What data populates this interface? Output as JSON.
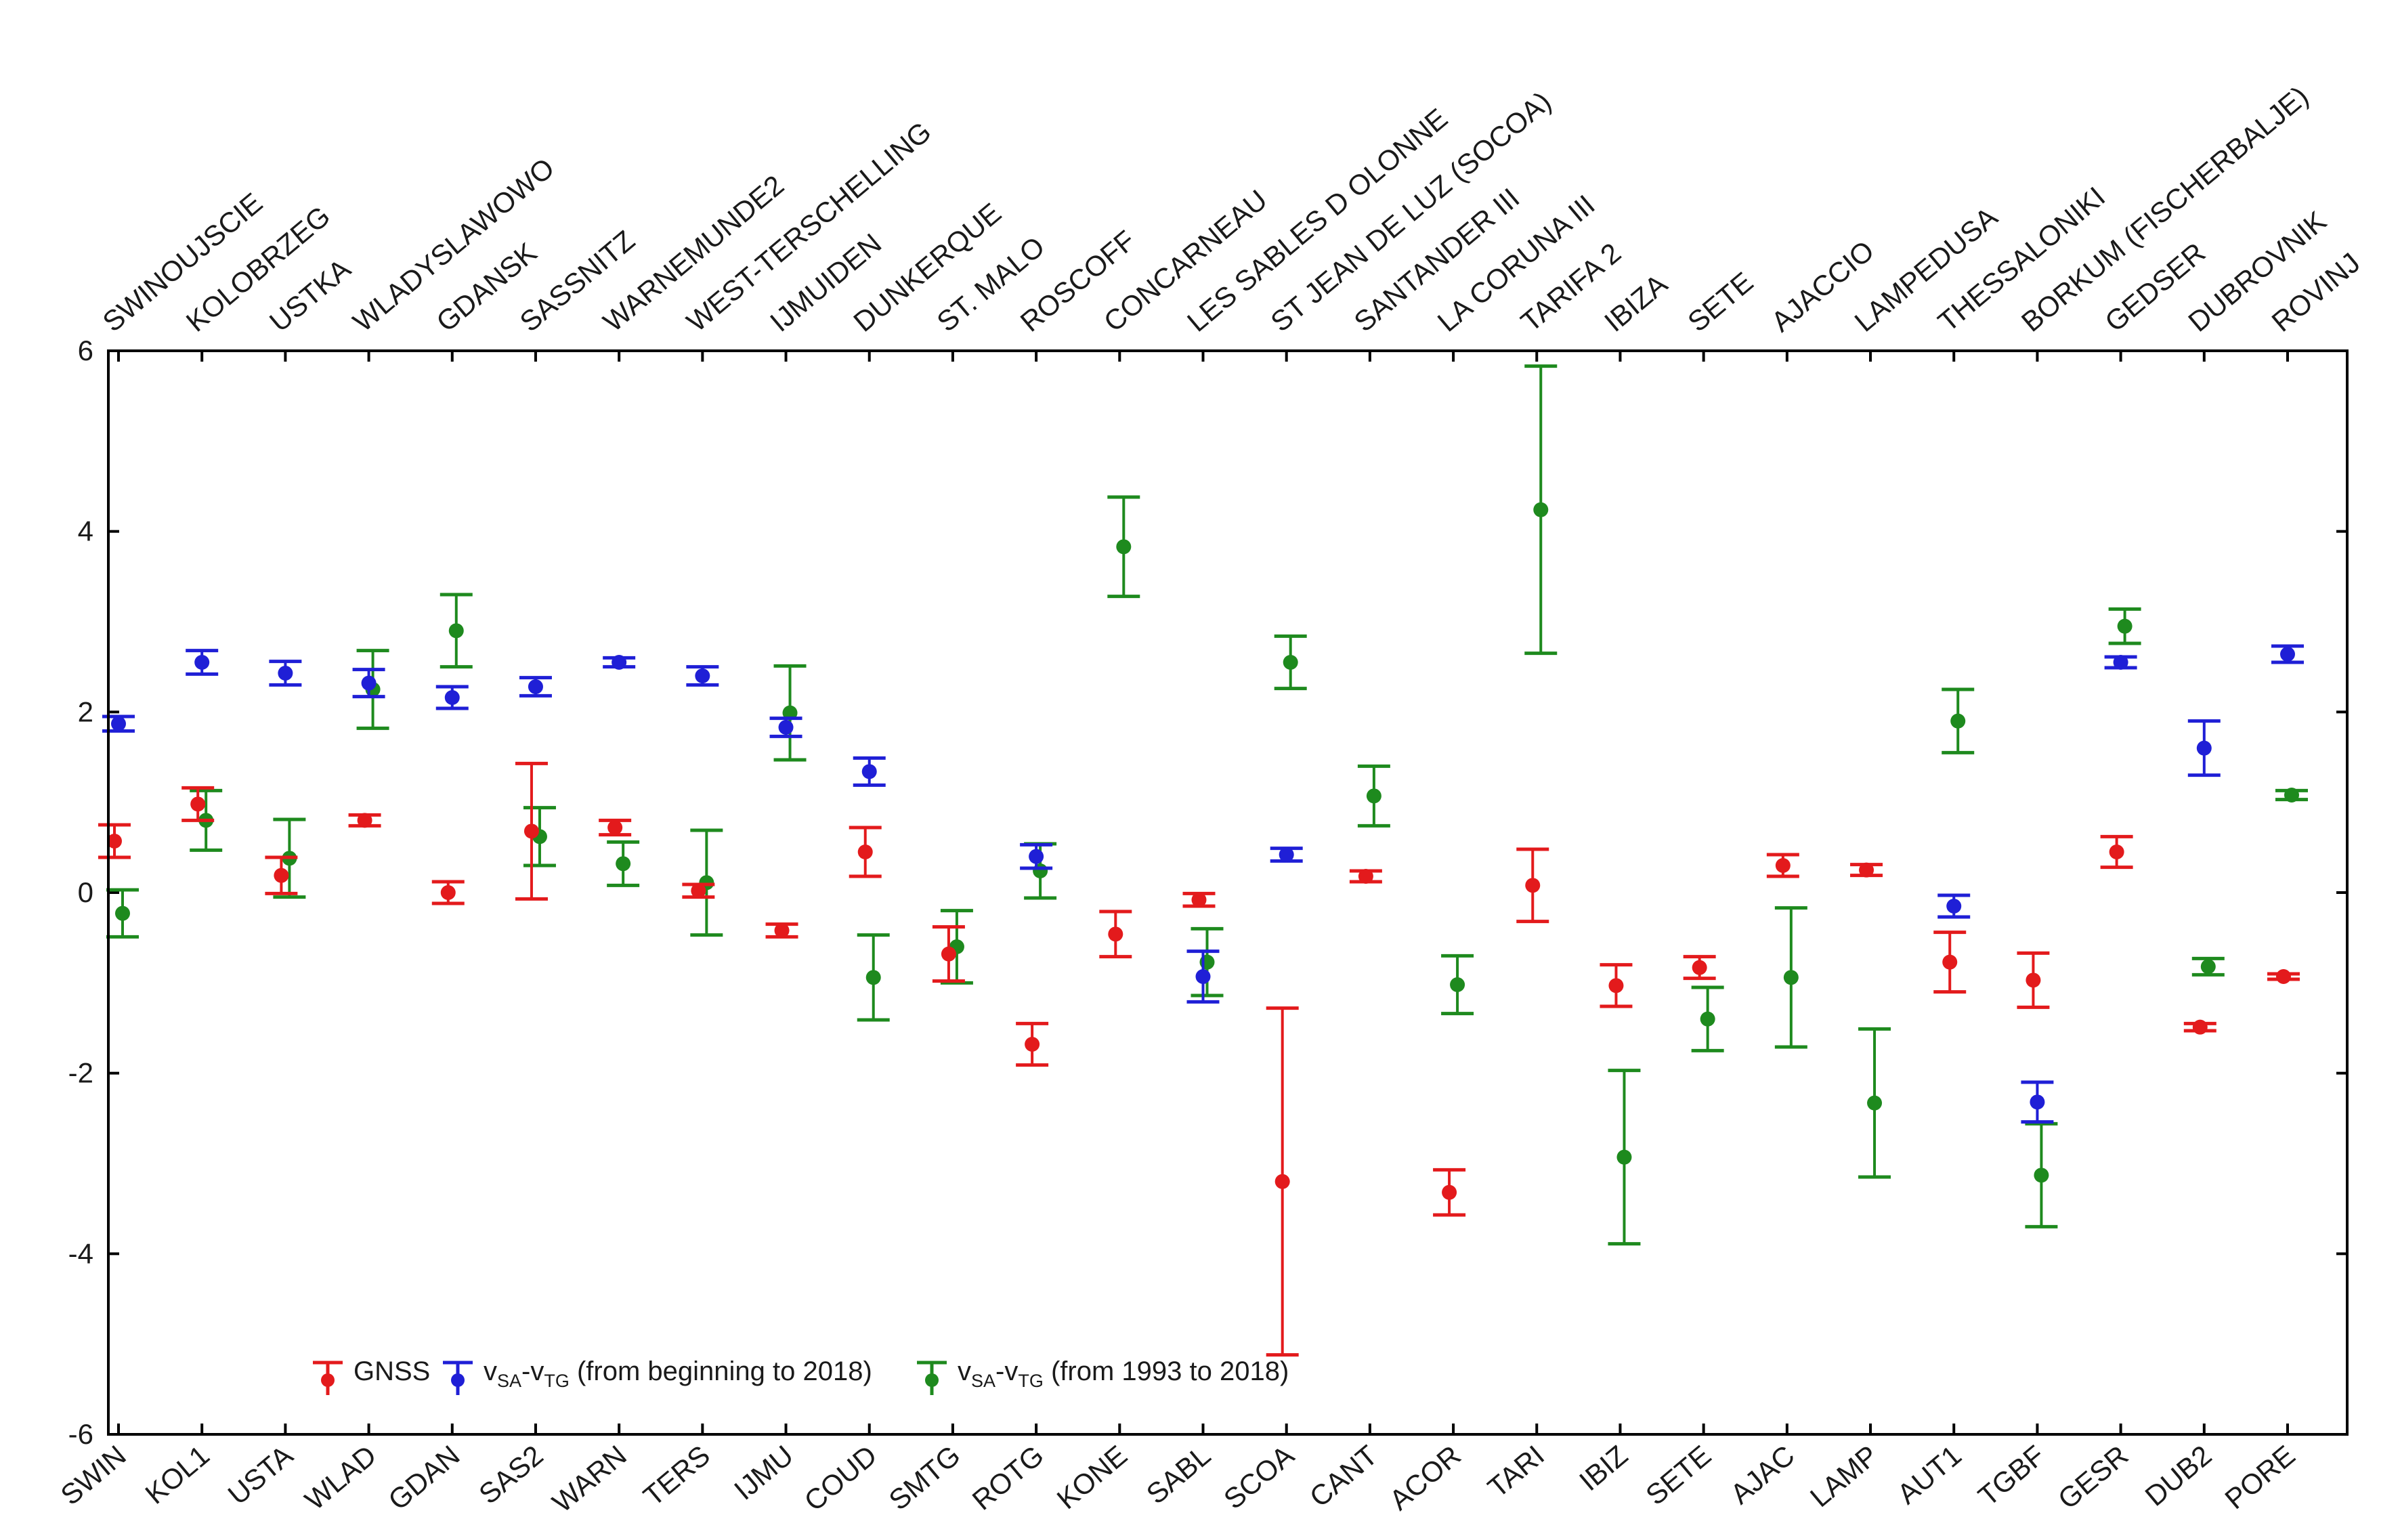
{
  "chart_data": {
    "type": "scatter",
    "title": "",
    "xlabel": "",
    "ylabel": "",
    "ylim": [
      -6,
      6
    ],
    "yticks": [
      -6,
      -4,
      -2,
      0,
      2,
      4,
      6
    ],
    "ytick_labels": [
      "-6",
      "-4",
      "-2",
      "0",
      "2",
      "4",
      "6"
    ],
    "grid": false,
    "categories": [
      "SWIN",
      "KOL1",
      "USTA",
      "WLAD",
      "GDAN",
      "SAS2",
      "WARN",
      "TERS",
      "IJMU",
      "COUD",
      "SMTG",
      "ROTG",
      "KONE",
      "SABL",
      "SCOA",
      "CANT",
      "ACOR",
      "TARI",
      "IBIZ",
      "SETE",
      "AJAC",
      "LAMP",
      "AUT1",
      "TGBF",
      "GESR",
      "DUB2",
      "PORE"
    ],
    "top_labels": [
      "SWINOUJSCIE",
      "KOLOBRZEG",
      "USTKA",
      "WLADYSLAWOWO",
      "GDANSK",
      "SASSNITZ",
      "WARNEMUNDE2",
      "WEST-TERSCHELLING",
      "IJMUIDEN",
      "DUNKERQUE",
      "ST. MALO",
      "ROSCOFF",
      "CONCARNEAU",
      "LES SABLES D OLONNE",
      "ST JEAN DE LUZ (SOCOA)",
      "SANTANDER III",
      "LA CORUNA III",
      "TARIFA 2",
      "IBIZA",
      "SETE",
      "AJACCIO",
      "LAMPEDUSA",
      "THESSALONIKI",
      "BORKUM (FISCHERBALJE)",
      "GEDSER",
      "DUBROVNIK",
      "ROVINJ"
    ],
    "series": [
      {
        "name": "GNSS",
        "color": "#e31a1c",
        "values": [
          0.57,
          0.98,
          0.19,
          0.8,
          0.0,
          0.68,
          0.72,
          0.02,
          -0.42,
          0.45,
          -0.68,
          -1.68,
          -0.46,
          -0.08,
          -3.2,
          0.18,
          -3.32,
          0.08,
          -1.03,
          -0.83,
          0.3,
          0.25,
          -0.77,
          -0.97,
          0.45,
          -1.49,
          -0.93
        ],
        "errors": [
          0.18,
          0.18,
          0.2,
          0.06,
          0.12,
          0.75,
          0.08,
          0.07,
          0.07,
          0.27,
          0.3,
          0.23,
          0.25,
          0.07,
          1.92,
          0.06,
          0.25,
          0.4,
          0.23,
          0.12,
          0.12,
          0.06,
          0.33,
          0.3,
          0.17,
          0.04,
          0.03
        ]
      },
      {
        "name": "vSA-vTG (from beginning to 2018)",
        "color": "#1f1fd6",
        "values": [
          1.87,
          2.55,
          2.43,
          2.32,
          2.16,
          2.28,
          2.55,
          2.4,
          1.83,
          1.34,
          null,
          0.4,
          null,
          -0.93,
          0.42,
          null,
          null,
          null,
          null,
          null,
          null,
          null,
          -0.15,
          -2.32,
          2.55,
          1.6,
          2.64
        ],
        "errors": [
          0.08,
          0.13,
          0.13,
          0.15,
          0.12,
          0.1,
          0.05,
          0.1,
          0.1,
          0.15,
          null,
          0.13,
          null,
          0.28,
          0.07,
          null,
          null,
          null,
          null,
          null,
          null,
          null,
          0.12,
          0.22,
          0.06,
          0.3,
          0.09
        ]
      },
      {
        "name": "vSA-vTG (from 1993 to 2018)",
        "color": "#1e8a1e",
        "values": [
          -0.23,
          0.8,
          0.38,
          2.25,
          2.9,
          0.62,
          0.32,
          0.11,
          1.99,
          -0.94,
          -0.6,
          0.24,
          3.83,
          -0.77,
          2.55,
          1.07,
          -1.02,
          4.24,
          -2.93,
          -1.4,
          -0.94,
          -2.33,
          1.9,
          -3.13,
          2.95,
          -0.82,
          1.08
        ],
        "errors": [
          0.26,
          0.33,
          0.43,
          0.43,
          0.4,
          0.32,
          0.24,
          0.58,
          0.52,
          0.47,
          0.4,
          0.3,
          0.55,
          0.37,
          0.29,
          0.33,
          0.32,
          1.59,
          0.96,
          0.35,
          0.77,
          0.82,
          0.35,
          0.57,
          0.19,
          0.09,
          0.05
        ]
      }
    ],
    "legend": {
      "position": "bottom-left",
      "gnss": "GNSS",
      "v": "v",
      "sa": "SA",
      "tg": "TG",
      "dash": "-",
      "blue_suffix": " (from beginning to 2018)",
      "green_suffix": " (from 1993 to 2018)"
    }
  }
}
